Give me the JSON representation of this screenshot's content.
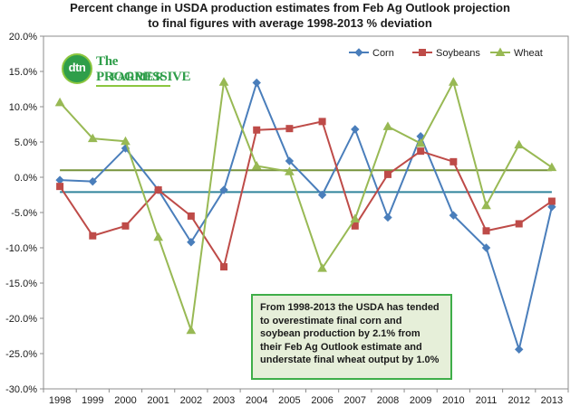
{
  "title_lines": [
    "Percent change in USDA production estimates from Feb Ag Outlook projection",
    "to final figures with average 1998-2013  % deviation"
  ],
  "logo": {
    "badge": "dtn",
    "line1": "The PROGRESSIVE",
    "line2": "FARMER"
  },
  "callout": "From 1998-2013 the USDA has tended to overestimate final corn and soybean production by 2.1% from their Feb Ag Outlook estimate and understate final wheat output by 1.0%",
  "colors": {
    "corn": "#4a7ebb",
    "soybeans": "#be4b48",
    "wheat": "#98b954",
    "avg_corn_soy": "#31859c",
    "avg_wheat": "#77933c",
    "callout_border": "#3fae49"
  },
  "chart_data": {
    "type": "line",
    "categories": [
      "1998",
      "1999",
      "2000",
      "2001",
      "2002",
      "2003",
      "2004",
      "2005",
      "2006",
      "2007",
      "2008",
      "2009",
      "2010",
      "2011",
      "2012",
      "2013"
    ],
    "y_tick_labels": [
      "20.0%",
      "15.0%",
      "10.0%",
      "5.0%",
      "0.0%",
      "-5.0%",
      "-10.0%",
      "-15.0%",
      "-20.0%",
      "-25.0%",
      "-30.0%"
    ],
    "ylim": [
      -30,
      20
    ],
    "y_step": 5,
    "grid": false,
    "legend_position": "top-right",
    "series": [
      {
        "name": "Corn",
        "marker": "diamond",
        "color": "#4a7ebb",
        "values": [
          -0.4,
          -0.6,
          4.1,
          -1.8,
          -9.2,
          -1.8,
          13.4,
          2.3,
          -2.5,
          6.8,
          -5.7,
          5.8,
          -5.4,
          -10.0,
          -24.4,
          -4.2
        ]
      },
      {
        "name": "Soybeans",
        "marker": "square",
        "color": "#be4b48",
        "values": [
          -1.3,
          -8.3,
          -6.9,
          -1.8,
          -5.5,
          -12.7,
          6.7,
          6.9,
          7.9,
          -6.9,
          0.4,
          3.7,
          2.2,
          -7.6,
          -6.6,
          -3.4
        ]
      },
      {
        "name": "Wheat",
        "marker": "triangle",
        "color": "#98b954",
        "values": [
          10.6,
          5.5,
          5.1,
          -8.5,
          -21.7,
          13.5,
          1.6,
          0.8,
          -12.9,
          -5.9,
          7.2,
          4.8,
          13.5,
          -4.0,
          4.6,
          1.4
        ]
      }
    ],
    "reference_lines": [
      {
        "value": -2.1,
        "color": "#31859c"
      },
      {
        "value": 1.0,
        "color": "#77933c"
      }
    ]
  }
}
